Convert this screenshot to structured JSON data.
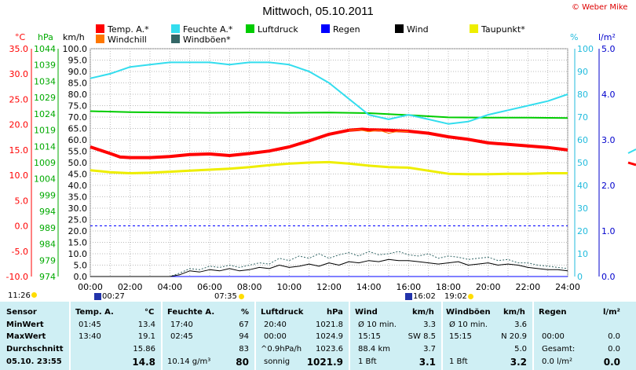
{
  "title": "Mittwoch, 05.10.2011",
  "copyright": "© Weber Mike",
  "colors": {
    "temp": "#ff0000",
    "humidity": "#33ddee",
    "pressure": "#00cc00",
    "rain": "#0000ff",
    "wind": "#000000",
    "dewpoint": "#eeee00",
    "windchill": "#ff7700",
    "gust": "#336666",
    "table_bg": "#cfeff4"
  },
  "legend": {
    "row1": [
      {
        "label": "Temp. A.*",
        "color": "#ff0000"
      },
      {
        "label": "Feuchte A.*",
        "color": "#33ddee"
      },
      {
        "label": "Luftdruck",
        "color": "#00cc00"
      },
      {
        "label": "Regen",
        "color": "#0000ff"
      },
      {
        "label": "Wind",
        "color": "#000000"
      },
      {
        "label": "Taupunkt*",
        "color": "#eeee00"
      }
    ],
    "row2": [
      {
        "label": "Windchill",
        "color": "#ff7700"
      },
      {
        "label": "Windböen*",
        "color": "#336666"
      }
    ]
  },
  "axes": {
    "temp_unit": "°C",
    "pressure_unit": "hPa",
    "wind_unit": "km/h",
    "humidity_unit": "%",
    "rain_unit": "l/m²",
    "temp_ticks": [
      "35.0",
      "30.0",
      "25.0",
      "20.0",
      "15.0",
      "10.0",
      "5.0",
      "0.0",
      "-5.0",
      "-10.0"
    ],
    "pressure_ticks": [
      "1044",
      "1039",
      "1034",
      "1029",
      "1024",
      "1019",
      "1014",
      "1009",
      "1004",
      "999",
      "994",
      "989",
      "984",
      "979",
      "974"
    ],
    "wind_ticks": [
      "100.0",
      "95.0",
      "90.0",
      "85.0",
      "80.0",
      "75.0",
      "70.0",
      "65.0",
      "60.0",
      "55.0",
      "50.0",
      "45.0",
      "40.0",
      "35.0",
      "30.0",
      "25.0",
      "20.0",
      "15.0",
      "10.0",
      "5.0",
      "0.0"
    ],
    "humidity_ticks": [
      "100",
      "90",
      "80",
      "70",
      "60",
      "50",
      "40",
      "30",
      "20",
      "10",
      "0"
    ],
    "rain_ticks": [
      "5.0",
      "4.0",
      "3.0",
      "2.0",
      "1.0",
      "0.0"
    ],
    "time_ticks": [
      "00:00",
      "02:00",
      "04:00",
      "06:00",
      "08:00",
      "10:00",
      "12:00",
      "14:00",
      "16:00",
      "18:00",
      "20:00",
      "22:00",
      "24:00"
    ]
  },
  "sun_moon": {
    "sunrise": "07:35",
    "sunset": "19:02",
    "moonrise": "16:02",
    "moonset": "00:27",
    "prev": "11:26"
  },
  "chart_data": {
    "type": "line",
    "title": "Mittwoch, 05.10.2011",
    "x_unit": "hours",
    "xlim": [
      0,
      24
    ],
    "y_axes": {
      "wind_kmh": [
        0,
        100
      ],
      "temp_c": [
        -10,
        35
      ],
      "pressure_hpa": [
        974,
        1044
      ],
      "humidity_pct": [
        0,
        100
      ],
      "rain_lm2": [
        0,
        5
      ]
    },
    "series": [
      {
        "name": "Temp. A.*",
        "axis": "temp_c",
        "color": "#ff0000",
        "width": 4,
        "x": [
          0,
          1,
          1.5,
          2,
          3,
          4,
          5,
          6,
          7,
          8,
          9,
          10,
          11,
          12,
          13,
          13.67,
          14,
          15,
          16,
          17,
          18,
          19,
          20,
          21,
          22,
          23,
          24
        ],
        "y": [
          15.6,
          14.3,
          13.6,
          13.5,
          13.5,
          13.7,
          14.1,
          14.2,
          13.9,
          14.3,
          14.8,
          15.6,
          16.8,
          18.1,
          18.9,
          19.1,
          19.0,
          18.9,
          18.7,
          18.3,
          17.6,
          17.1,
          16.4,
          16.1,
          15.8,
          15.5,
          15.0
        ]
      },
      {
        "name": "Feuchte A.*",
        "axis": "humidity_pct",
        "color": "#33ddee",
        "width": 2,
        "x": [
          0,
          1,
          2,
          3,
          4,
          5,
          6,
          7,
          8,
          9,
          10,
          11,
          12,
          13,
          14,
          15,
          16,
          17,
          18,
          19,
          20,
          21,
          22,
          23,
          24
        ],
        "y": [
          87,
          89,
          92,
          93,
          94,
          94,
          94,
          93,
          94,
          94,
          93,
          90,
          85,
          78,
          71,
          69,
          71,
          69,
          67,
          68,
          71,
          73,
          75,
          77,
          80
        ]
      },
      {
        "name": "Luftdruck",
        "axis": "pressure_hpa",
        "color": "#00cc00",
        "width": 2,
        "x": [
          0,
          2,
          4,
          6,
          8,
          10,
          12,
          14,
          16,
          18,
          20,
          22,
          24
        ],
        "y": [
          1024.8,
          1024.5,
          1024.4,
          1024.3,
          1024.4,
          1024.3,
          1024.4,
          1024.2,
          1023.6,
          1022.9,
          1022.8,
          1022.8,
          1022.7
        ]
      },
      {
        "name": "Taupunkt*",
        "axis": "temp_c",
        "color": "#eeee00",
        "width": 3,
        "x": [
          0,
          1,
          2,
          3,
          4,
          5,
          6,
          7,
          8,
          9,
          10,
          11,
          12,
          13,
          14,
          15,
          16,
          17,
          18,
          19,
          20,
          21,
          22,
          23,
          24
        ],
        "y": [
          11.0,
          10.6,
          10.4,
          10.5,
          10.7,
          10.9,
          11.1,
          11.3,
          11.6,
          12.0,
          12.3,
          12.5,
          12.6,
          12.3,
          11.9,
          11.6,
          11.5,
          10.9,
          10.3,
          10.2,
          10.2,
          10.3,
          10.3,
          10.4,
          10.4
        ]
      },
      {
        "name": "Windchill",
        "axis": "temp_c",
        "color": "#ff7700",
        "width": 1,
        "x": [
          13,
          13.5,
          14,
          14.5,
          15,
          15.5,
          16
        ],
        "y": [
          18.9,
          19.0,
          18.6,
          18.9,
          18.3,
          18.7,
          18.6
        ]
      },
      {
        "name": "Wind",
        "axis": "wind_kmh",
        "color": "#000000",
        "width": 1,
        "x": [
          0,
          4,
          4.5,
          5,
          5.5,
          6,
          6.5,
          7,
          7.5,
          8,
          8.5,
          9,
          9.5,
          10,
          10.5,
          11,
          11.5,
          12,
          12.5,
          13,
          13.5,
          14,
          14.5,
          15,
          15.5,
          16,
          16.5,
          17,
          17.5,
          18,
          18.5,
          19,
          19.5,
          20,
          20.5,
          21,
          21.5,
          22,
          22.5,
          23,
          23.5,
          24
        ],
        "y": [
          0,
          0,
          0.8,
          2.5,
          2,
          3,
          2.5,
          3.5,
          2.5,
          3,
          4,
          3.5,
          5,
          4,
          4.5,
          5.5,
          4.5,
          6,
          5,
          6.5,
          6,
          7,
          6.5,
          7.5,
          7,
          7,
          6.5,
          6,
          5.5,
          6,
          6.5,
          5,
          5.5,
          6,
          5,
          5.5,
          5,
          4,
          3.5,
          3,
          3,
          2.5
        ]
      },
      {
        "name": "Windböen*",
        "axis": "wind_kmh",
        "color": "#336666",
        "width": 1,
        "x": [
          0,
          4,
          4.5,
          5,
          5.5,
          6,
          6.5,
          7,
          7.5,
          8,
          8.5,
          9,
          9.5,
          10,
          10.5,
          11,
          11.5,
          12,
          12.5,
          13,
          13.5,
          14,
          14.5,
          15,
          15.5,
          16,
          16.5,
          17,
          17.5,
          18,
          18.5,
          19,
          19.5,
          20,
          20.5,
          21,
          21.5,
          22,
          22.5,
          23,
          23.5,
          24
        ],
        "y": [
          0,
          0,
          1.5,
          3.5,
          3,
          4.5,
          4,
          5,
          4,
          5,
          6,
          5.5,
          8,
          7,
          9,
          8,
          10,
          8,
          9.5,
          10.5,
          9,
          11,
          9.5,
          10,
          11,
          9.5,
          9,
          10,
          8,
          9,
          8.5,
          7.5,
          8,
          8.5,
          7,
          7.5,
          6,
          6,
          5,
          4.5,
          4,
          3.5
        ]
      },
      {
        "name": "Regen",
        "axis": "rain_lm2",
        "color": "#0000ff",
        "width": 1,
        "x": [
          0,
          24
        ],
        "y": [
          0,
          0
        ]
      }
    ],
    "reference_lines": [
      {
        "axis": "temp_c",
        "value": 0,
        "style": "dashed",
        "color": "#0000ff"
      }
    ]
  },
  "table": {
    "row_labels": [
      "Sensor",
      "MinWert",
      "MaxWert",
      "Durchschnitt",
      "05.10. 23:55"
    ],
    "temp": {
      "title": "Temp. A.",
      "unit": "°C",
      "rows": [
        [
          "01:45",
          "13.4"
        ],
        [
          "13:40",
          "19.1"
        ],
        [
          "",
          "15.86"
        ],
        [
          "",
          "14.8"
        ]
      ]
    },
    "humidity": {
      "title": "Feuchte A.",
      "unit": "%",
      "rows": [
        [
          "17:40",
          "67"
        ],
        [
          "02:45",
          "94"
        ],
        [
          "",
          "83"
        ],
        [
          "10.14 g/m³",
          "80"
        ]
      ]
    },
    "pressure": {
      "title": "Luftdruck",
      "unit": "hPa",
      "rows": [
        [
          "20:40",
          "1021.8"
        ],
        [
          "00:00",
          "1024.9"
        ],
        [
          "^0.9hPa/h",
          "1023.6"
        ],
        [
          "sonnig",
          "1021.9"
        ]
      ]
    },
    "wind": {
      "title": "Wind",
      "unit": "km/h",
      "rows": [
        [
          "Ø 10 min.",
          "3.3"
        ],
        [
          "15:15",
          "SW 8.5"
        ],
        [
          "88.4 km",
          "3.7"
        ],
        [
          "1 Bft",
          "3.1"
        ]
      ]
    },
    "gust": {
      "title": "Windböen",
      "unit": "km/h",
      "rows": [
        [
          "Ø 10 min.",
          "3.6"
        ],
        [
          "15:15",
          "N 20.9"
        ],
        [
          "",
          "5.0"
        ],
        [
          "1 Bft",
          "3.2"
        ]
      ]
    },
    "rain": {
      "title": "Regen",
      "unit": "l/m²",
      "rows": [
        [
          "",
          ""
        ],
        [
          "00:00",
          "0.0"
        ],
        [
          "Gesamt:",
          "0.0"
        ],
        [
          "0.0 l/m²",
          "0.0"
        ]
      ]
    }
  }
}
